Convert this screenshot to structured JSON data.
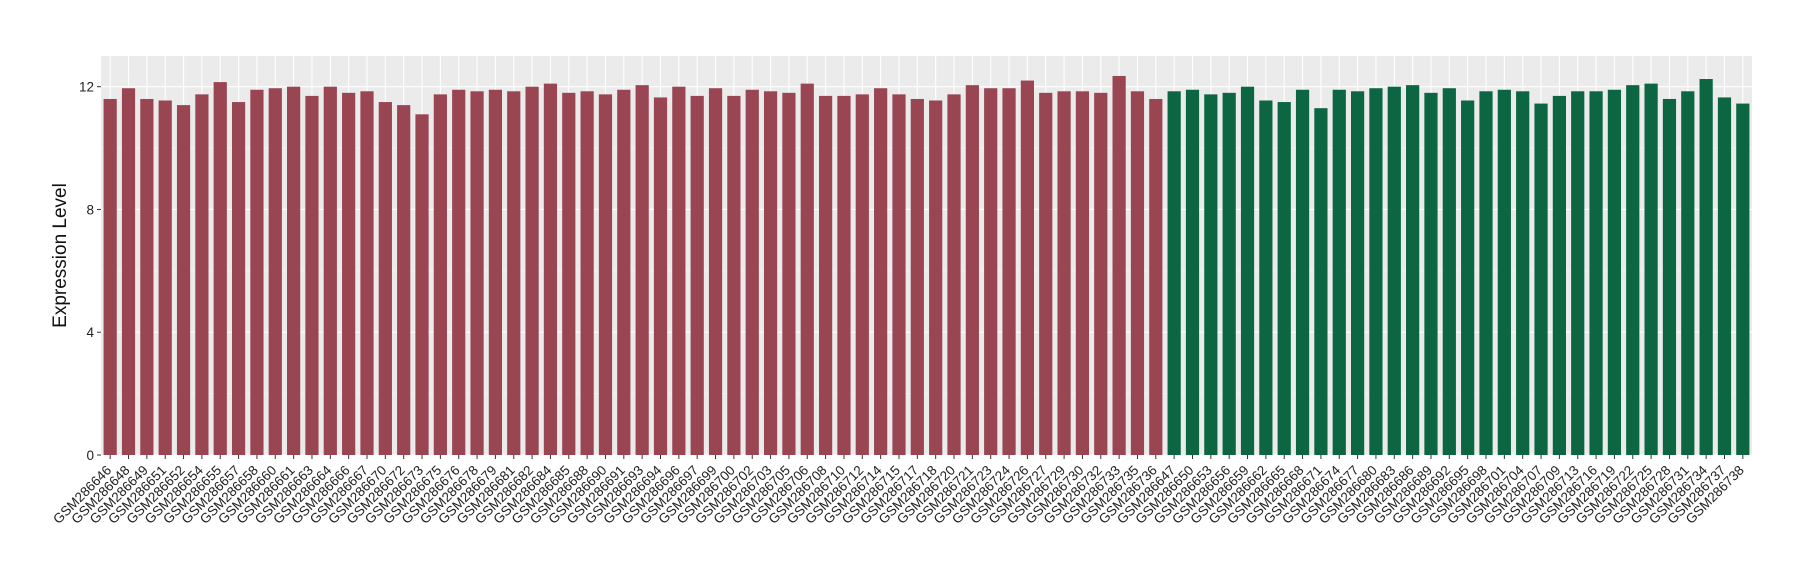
{
  "chart_data": {
    "type": "bar",
    "title": "",
    "xlabel": "",
    "ylabel": "Expression Level",
    "ylim": [
      0,
      13
    ],
    "yticks": [
      0,
      4,
      8,
      12
    ],
    "grid": true,
    "legend": "none",
    "panel_background": "#ebebeb",
    "categories": [
      "GSM286646",
      "GSM286648",
      "GSM286649",
      "GSM286651",
      "GSM286652",
      "GSM286654",
      "GSM286655",
      "GSM286657",
      "GSM286658",
      "GSM286660",
      "GSM286661",
      "GSM286663",
      "GSM286664",
      "GSM286666",
      "GSM286667",
      "GSM286670",
      "GSM286672",
      "GSM286673",
      "GSM286675",
      "GSM286676",
      "GSM286678",
      "GSM286679",
      "GSM286681",
      "GSM286682",
      "GSM286684",
      "GSM286685",
      "GSM286688",
      "GSM286690",
      "GSM286691",
      "GSM286693",
      "GSM286694",
      "GSM286696",
      "GSM286697",
      "GSM286699",
      "GSM286700",
      "GSM286702",
      "GSM286703",
      "GSM286705",
      "GSM286706",
      "GSM286708",
      "GSM286710",
      "GSM286712",
      "GSM286714",
      "GSM286715",
      "GSM286717",
      "GSM286718",
      "GSM286720",
      "GSM286721",
      "GSM286723",
      "GSM286724",
      "GSM286726",
      "GSM286727",
      "GSM286729",
      "GSM286730",
      "GSM286732",
      "GSM286733",
      "GSM286735",
      "GSM286736",
      "GSM286647",
      "GSM286650",
      "GSM286653",
      "GSM286656",
      "GSM286659",
      "GSM286662",
      "GSM286665",
      "GSM286668",
      "GSM286671",
      "GSM286674",
      "GSM286677",
      "GSM286680",
      "GSM286683",
      "GSM286686",
      "GSM286689",
      "GSM286692",
      "GSM286695",
      "GSM286698",
      "GSM286701",
      "GSM286704",
      "GSM286707",
      "GSM286709",
      "GSM286713",
      "GSM286716",
      "GSM286719",
      "GSM286722",
      "GSM286725",
      "GSM286728",
      "GSM286731",
      "GSM286734",
      "GSM286737",
      "GSM286738"
    ],
    "values": [
      11.6,
      11.95,
      11.6,
      11.55,
      11.4,
      11.75,
      12.15,
      11.5,
      11.9,
      11.95,
      12.0,
      11.7,
      12.0,
      11.8,
      11.85,
      11.5,
      11.4,
      11.1,
      11.75,
      11.9,
      11.85,
      11.9,
      11.85,
      12.0,
      12.1,
      11.8,
      11.85,
      11.75,
      11.9,
      12.05,
      11.65,
      12.0,
      11.7,
      11.95,
      11.7,
      11.9,
      11.85,
      11.8,
      12.1,
      11.7,
      11.7,
      11.75,
      11.95,
      11.75,
      11.6,
      11.55,
      11.75,
      12.05,
      11.95,
      11.95,
      12.2,
      11.8,
      11.85,
      11.85,
      11.8,
      12.35,
      11.85,
      11.6,
      11.85,
      11.9,
      11.75,
      11.8,
      12.0,
      11.55,
      11.5,
      11.9,
      11.3,
      11.9,
      11.85,
      11.95,
      12.0,
      12.05,
      11.8,
      11.95,
      11.55,
      11.85,
      11.9,
      11.85,
      11.45,
      11.7,
      11.85,
      11.85,
      11.9,
      12.05,
      12.1,
      11.6,
      11.85,
      12.25,
      11.65,
      11.45
    ],
    "groups": [
      {
        "color": "#9a4552",
        "count": 58
      },
      {
        "color": "#0b6641",
        "count": 32
      }
    ]
  }
}
